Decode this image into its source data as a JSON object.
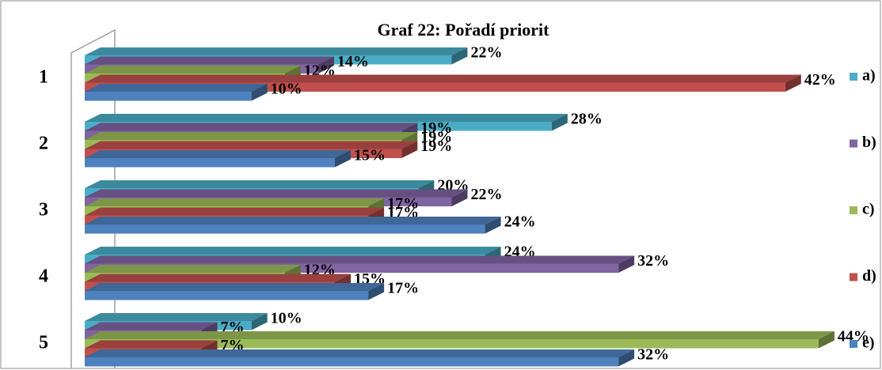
{
  "chart_data": {
    "type": "bar",
    "orientation": "horizontal",
    "three_d": true,
    "title": "Graf  22:  Pořadí priorit",
    "categories": [
      "1",
      "2",
      "3",
      "4",
      "5"
    ],
    "xlim": [
      0,
      45
    ],
    "legend": "right",
    "series": [
      {
        "name": "a)",
        "color": "#4bacc6",
        "values": [
          22,
          28,
          20,
          24,
          10
        ],
        "value_labels": [
          "22%",
          "28%",
          "20%",
          "24%",
          "10%"
        ]
      },
      {
        "name": "b)",
        "color": "#8064a2",
        "values": [
          14,
          19,
          22,
          32,
          7
        ],
        "value_labels": [
          "14%",
          "19%",
          "22%",
          "32%",
          "7%"
        ]
      },
      {
        "name": "c)",
        "color": "#9bbb59",
        "values": [
          12,
          19,
          17,
          12,
          44
        ],
        "value_labels": [
          "12%",
          "19%",
          "17%",
          "12%",
          "44%"
        ]
      },
      {
        "name": "d)",
        "color": "#c0504d",
        "values": [
          42,
          19,
          17,
          15,
          7
        ],
        "value_labels": [
          "42%",
          "19%",
          "17%",
          "15%",
          "7%"
        ]
      },
      {
        "name": "e)",
        "color": "#4f81bd",
        "values": [
          10,
          15,
          24,
          17,
          32
        ],
        "value_labels": [
          "10%",
          "15%",
          "24%",
          "17%",
          "32%"
        ]
      }
    ]
  }
}
